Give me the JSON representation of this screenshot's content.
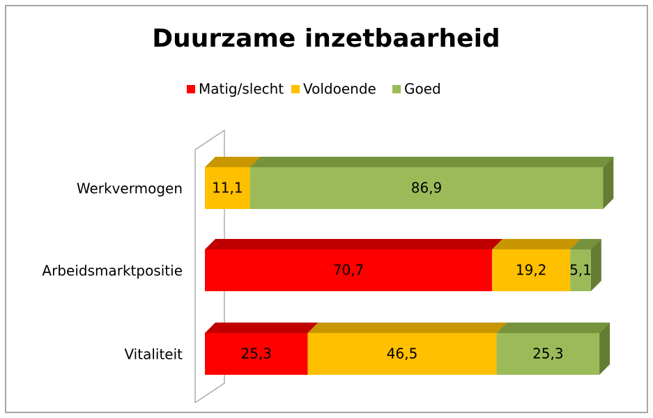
{
  "chart_data": {
    "type": "bar3d_stacked_horizontal",
    "title": "Duurzame inzetbaarheid",
    "categories": [
      "Werkvermogen",
      "Arbeidsmarktpositie",
      "Vitaliteit"
    ],
    "series": [
      {
        "name": "Matig/slecht",
        "color": "#ff0000",
        "top": "#c00000",
        "side": "#a00000",
        "values": [
          null,
          70.7,
          25.3
        ],
        "value_labels": [
          null,
          "70,7",
          "25,3"
        ]
      },
      {
        "name": "Voldoende",
        "color": "#ffc000",
        "top": "#c89600",
        "side": "#b08400",
        "values": [
          11.1,
          19.2,
          46.5
        ],
        "value_labels": [
          "11,1",
          "19,2",
          "46,5"
        ]
      },
      {
        "name": "Goed",
        "color": "#9bbb59",
        "top": "#76923c",
        "side": "#657d33",
        "values": [
          86.9,
          5.1,
          25.3
        ],
        "value_labels": [
          "86,9",
          "5,1",
          "25,3"
        ]
      }
    ],
    "xlim": [
      0,
      100
    ],
    "legend": "top"
  }
}
